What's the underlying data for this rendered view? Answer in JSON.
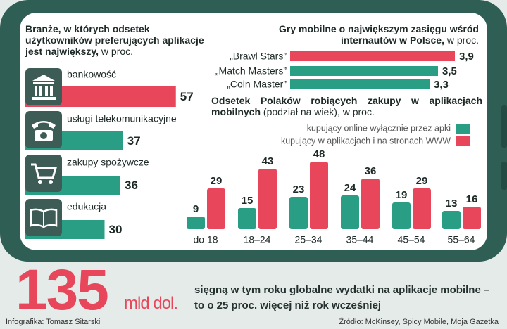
{
  "chart_data": [
    {
      "type": "bar",
      "orientation": "horizontal",
      "title": "Branże, w których odsetek użytkowników preferujących aplikacje jest największy,",
      "subtitle": "w proc.",
      "categories": [
        "bankowość",
        "usługi telekomunikacyjne",
        "zakupy spożywcze",
        "edukacja"
      ],
      "values": [
        57,
        37,
        36,
        30
      ],
      "colors": [
        "#e8465a",
        "#2a9d85",
        "#2a9d85",
        "#2a9d85"
      ]
    },
    {
      "type": "bar",
      "orientation": "horizontal",
      "title": "Gry mobilne o największym zasięgu wśród internautów w Polsce,",
      "subtitle": "w proc.",
      "categories": [
        "„Brawl Stars”",
        "„Match Masters”",
        "„Coin Master”"
      ],
      "values": [
        3.9,
        3.5,
        3.3
      ],
      "value_labels": [
        "3,9",
        "3,5",
        "3,3"
      ],
      "colors": [
        "#e8465a",
        "#2a9d85",
        "#2a9d85"
      ]
    },
    {
      "type": "grouped_bar",
      "title": "Odsetek Polaków robiących zakupy w aplikacjach mobilnych",
      "subtitle": "(podział na wiek), w proc.",
      "categories": [
        "do 18",
        "18–24",
        "25–34",
        "35–44",
        "45–54",
        "55–64"
      ],
      "series": [
        {
          "name": "kupujący online wyłącznie przez apki",
          "color": "#2a9d85",
          "values": [
            9,
            15,
            23,
            24,
            19,
            13
          ]
        },
        {
          "name": "kupujący w aplikacjach i na stronach WWW",
          "color": "#e8465a",
          "values": [
            29,
            43,
            48,
            36,
            29,
            16
          ]
        }
      ]
    }
  ],
  "headline": {
    "number": "135",
    "unit": "mld dol.",
    "text": "sięgną w tym roku globalne wydatki na aplikacje mobilne – to o 25 proc. więcej niż rok wcześniej"
  },
  "footer": {
    "credit": "Infografika: Tomasz Sitarski",
    "source": "Źródło: McKinsey, Spicy Mobile, Moja Gazetka"
  }
}
